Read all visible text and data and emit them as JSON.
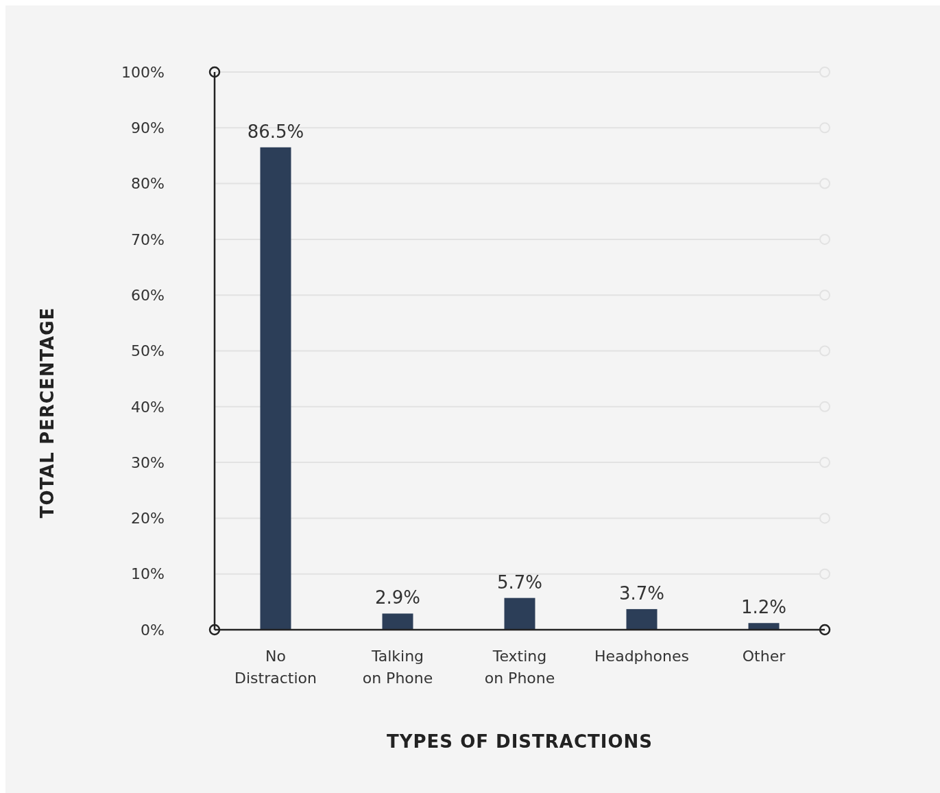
{
  "chart_data": {
    "type": "bar",
    "xlabel": "TYPES OF DISTRACTIONS",
    "ylabel": "TOTAL PERCENTAGE",
    "categories": [
      "No Distraction",
      "Talking on Phone",
      "Texting on Phone",
      "Headphones",
      "Other"
    ],
    "values": [
      86.5,
      2.9,
      5.7,
      3.7,
      1.2
    ],
    "value_labels": [
      "86.5%",
      "2.9%",
      "5.7%",
      "3.7%",
      "1.2%"
    ],
    "color": "#2c3e58",
    "ylim": [
      0,
      100
    ],
    "yticks": [
      {
        "value": 0,
        "label": "0%"
      },
      {
        "value": 10,
        "label": "10%"
      },
      {
        "value": 20,
        "label": "20%"
      },
      {
        "value": 30,
        "label": "30%"
      },
      {
        "value": 40,
        "label": "40%"
      },
      {
        "value": 50,
        "label": "50%"
      },
      {
        "value": 60,
        "label": "60%"
      },
      {
        "value": 70,
        "label": "70%"
      },
      {
        "value": 80,
        "label": "80%"
      },
      {
        "value": 90,
        "label": "90%"
      },
      {
        "value": 100,
        "label": "100%"
      }
    ],
    "grid": "y"
  }
}
